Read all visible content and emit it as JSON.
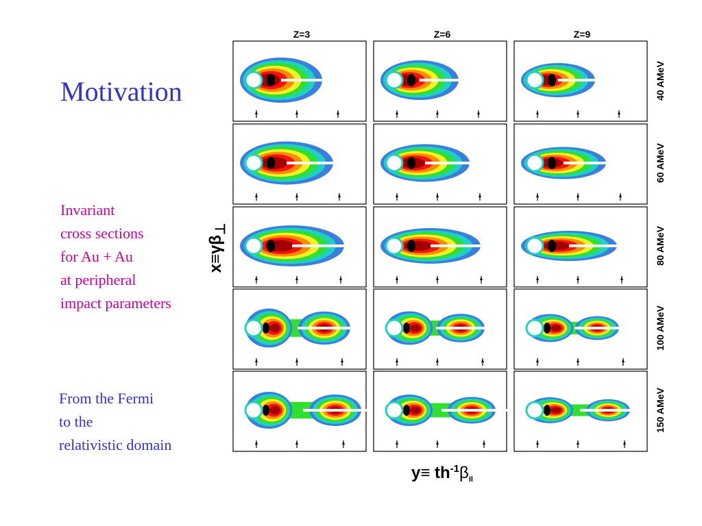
{
  "slide": {
    "title": "Motivation",
    "description_lines": [
      "Invariant",
      "cross sections",
      "for Au + Au",
      "at peripheral",
      "impact parameters"
    ],
    "note_lines": [
      "From the Fermi",
      "to the",
      "relativistic domain"
    ]
  },
  "figure": {
    "columns": [
      "Z=3",
      "Z=6",
      "Z=9"
    ],
    "rows": [
      "40 AMeV",
      "60 AMeV",
      "80 AMeV",
      "100 AMeV",
      "150 AMeV"
    ],
    "y_axis_label": {
      "main": "x≡γβ",
      "sub": "⊥"
    },
    "x_axis_label": {
      "main": "y≡ th",
      "sup": "-1",
      "beta": "β",
      "sub": "II"
    },
    "palette": {
      "outer": "#3a7fe0",
      "ring1": "#20d0c0",
      "ring2": "#30e030",
      "ring3": "#f8f020",
      "ring4": "#ff8c00",
      "ring5": "#ff1010",
      "core": "#a00000",
      "center": "#000000"
    }
  }
}
